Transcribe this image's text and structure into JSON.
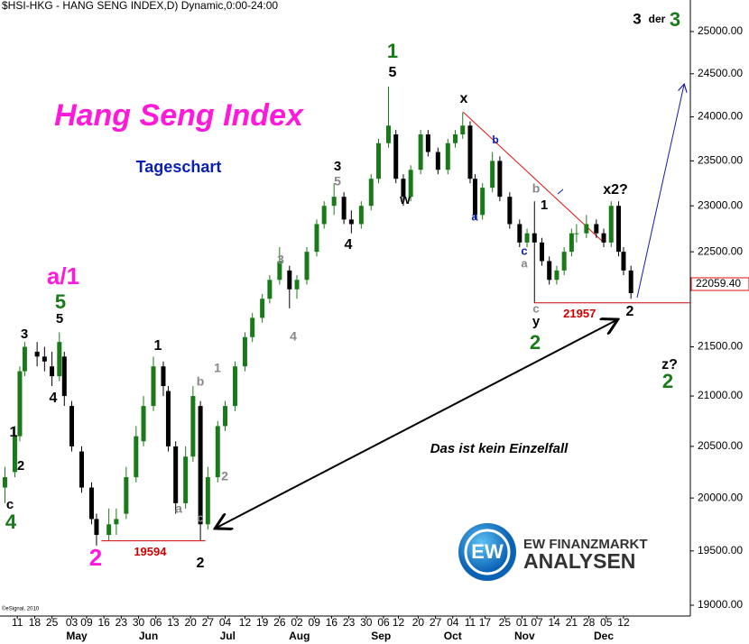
{
  "chart_data": {
    "type": "candlestick",
    "title": "$HSI-HKG - HANG SENG INDEX,D) Dynamic,0:00-24:00",
    "source": "©eSignal, 2010",
    "log_scale": true,
    "up_color": "#1a7a1a",
    "down_color": "#000000",
    "xlim": [
      -7,
      272
    ],
    "ylim": [
      18902,
      25380
    ],
    "yticks": [
      {
        "value": 19000,
        "label": "19000.00"
      },
      {
        "value": 19500,
        "label": "19500.00"
      },
      {
        "value": 20000,
        "label": "20000.00"
      },
      {
        "value": 20500,
        "label": "20500.00"
      },
      {
        "value": 21000,
        "label": "21000.00"
      },
      {
        "value": 21500,
        "label": "21500.00"
      },
      {
        "value": 22500,
        "label": "22500.00"
      },
      {
        "value": 23000,
        "label": "23000.00"
      },
      {
        "value": 23500,
        "label": "23500.00"
      },
      {
        "value": 24000,
        "label": "24000.00"
      },
      {
        "value": 24500,
        "label": "24500.00"
      },
      {
        "value": 25000,
        "label": "25000.00"
      }
    ],
    "xticks": [
      {
        "value": 0,
        "label": "11"
      },
      {
        "value": 7,
        "label": "18"
      },
      {
        "value": 14,
        "label": "25"
      },
      {
        "value": 22,
        "label": "03"
      },
      {
        "value": 28,
        "label": "09"
      },
      {
        "value": 35,
        "label": "16"
      },
      {
        "value": 42,
        "label": "23"
      },
      {
        "value": 49,
        "label": "30"
      },
      {
        "value": 56,
        "label": "06"
      },
      {
        "value": 63,
        "label": "13"
      },
      {
        "value": 70,
        "label": "20"
      },
      {
        "value": 77,
        "label": "27"
      },
      {
        "value": 84,
        "label": "04"
      },
      {
        "value": 92,
        "label": "12"
      },
      {
        "value": 99,
        "label": "19"
      },
      {
        "value": 106,
        "label": "26"
      },
      {
        "value": 113,
        "label": "02"
      },
      {
        "value": 120,
        "label": "09"
      },
      {
        "value": 127,
        "label": "16"
      },
      {
        "value": 134,
        "label": "23"
      },
      {
        "value": 141,
        "label": "30"
      },
      {
        "value": 148,
        "label": "06"
      },
      {
        "value": 154,
        "label": "12"
      },
      {
        "value": 162,
        "label": "20"
      },
      {
        "value": 169,
        "label": "27"
      },
      {
        "value": 176,
        "label": "04"
      },
      {
        "value": 183,
        "label": "11"
      },
      {
        "value": 189,
        "label": "17"
      },
      {
        "value": 197,
        "label": "25"
      },
      {
        "value": 204,
        "label": "01"
      },
      {
        "value": 210,
        "label": "07"
      },
      {
        "value": 217,
        "label": "14"
      },
      {
        "value": 224,
        "label": "21"
      },
      {
        "value": 231,
        "label": "28"
      },
      {
        "value": 238,
        "label": "05"
      },
      {
        "value": 245,
        "label": "12"
      }
    ],
    "xmonths": [
      {
        "value": 24,
        "label": "May"
      },
      {
        "value": 53,
        "label": "Jun"
      },
      {
        "value": 85,
        "label": "Jul"
      },
      {
        "value": 114,
        "label": "Aug"
      },
      {
        "value": 147,
        "label": "Sep"
      },
      {
        "value": 176,
        "label": "Oct"
      },
      {
        "value": 205,
        "label": "Nov"
      },
      {
        "value": 237,
        "label": "Dec"
      }
    ],
    "x": [
      -5,
      -1,
      1,
      3,
      8,
      11,
      14,
      17,
      19,
      22,
      26,
      30,
      32,
      37,
      40,
      44,
      48,
      51,
      55,
      59,
      61,
      64,
      68,
      71,
      74,
      77,
      81,
      84,
      88,
      92,
      95,
      99,
      102,
      106,
      110,
      113,
      117,
      121,
      124,
      128,
      132,
      135,
      139,
      143,
      146,
      150,
      153,
      156,
      159,
      163,
      166,
      170,
      174,
      177,
      180,
      183,
      185,
      188,
      192,
      195,
      199,
      203,
      206,
      209,
      212,
      215,
      218,
      221,
      224,
      226,
      230,
      234,
      237,
      240,
      243,
      245,
      248
    ],
    "open": [
      20100,
      20250,
      20600,
      21250,
      21450,
      21400,
      21300,
      21200,
      21400,
      20900,
      20450,
      20100,
      19800,
      19650,
      19750,
      19850,
      20200,
      20550,
      20900,
      21300,
      21050,
      20500,
      19950,
      20400,
      20900,
      19750,
      20200,
      20700,
      20900,
      21300,
      21600,
      21800,
      22000,
      22200,
      22300,
      22100,
      22200,
      22500,
      22800,
      23000,
      23100,
      22850,
      22800,
      23000,
      23300,
      23700,
      23800,
      23300,
      23100,
      23400,
      23800,
      23600,
      23400,
      23700,
      23800,
      23900,
      23300,
      22900,
      23200,
      23500,
      23100,
      22800,
      22600,
      22700,
      22600,
      22400,
      22200,
      22300,
      22500,
      22700,
      22700,
      22800,
      22700,
      22600,
      23000,
      22500,
      22300
    ],
    "high": [
      20300,
      20700,
      21300,
      21550,
      21550,
      21500,
      21450,
      21650,
      21450,
      20950,
      20500,
      20150,
      19850,
      19900,
      19900,
      20300,
      20700,
      21000,
      21400,
      21350,
      21100,
      20550,
      20500,
      21100,
      20950,
      20300,
      20750,
      20950,
      21350,
      21650,
      21850,
      22050,
      22250,
      22550,
      22350,
      22250,
      22550,
      22850,
      23050,
      23250,
      23150,
      22950,
      23050,
      23350,
      23750,
      24350,
      23850,
      23350,
      23450,
      23850,
      23850,
      23650,
      23750,
      23850,
      24050,
      23950,
      23350,
      23250,
      23600,
      23550,
      23150,
      22850,
      22750,
      23050,
      22650,
      22450,
      22350,
      22550,
      22750,
      22800,
      22900,
      22850,
      22750,
      23050,
      23050,
      22550,
      22350
    ],
    "low": [
      19950,
      20200,
      20550,
      21200,
      21300,
      21250,
      21100,
      21150,
      20900,
      20450,
      20050,
      19750,
      19550,
      19600,
      19650,
      19800,
      20150,
      20500,
      20850,
      21000,
      20450,
      19850,
      19900,
      20350,
      19600,
      19700,
      20150,
      20650,
      20850,
      21250,
      21550,
      21750,
      21950,
      22150,
      21900,
      22000,
      22150,
      22450,
      22750,
      22900,
      22800,
      22700,
      22750,
      22950,
      23250,
      23650,
      23250,
      23000,
      23050,
      23350,
      23550,
      23350,
      23350,
      23650,
      23750,
      23250,
      22850,
      22850,
      23150,
      23050,
      22750,
      22550,
      22550,
      21957,
      22350,
      22150,
      22150,
      22250,
      22450,
      22600,
      22650,
      22650,
      22550,
      22550,
      22450,
      22250,
      22000
    ],
    "close": [
      20200,
      20600,
      21250,
      21500,
      21400,
      21350,
      21200,
      21550,
      21000,
      20500,
      20100,
      19800,
      19650,
      19750,
      19800,
      20200,
      20600,
      20900,
      21300,
      21100,
      20500,
      19950,
      20400,
      21000,
      19750,
      20200,
      20700,
      20900,
      21300,
      21600,
      21800,
      22000,
      22200,
      22400,
      22100,
      22200,
      22500,
      22800,
      23000,
      23100,
      22850,
      22800,
      23000,
      23300,
      23700,
      23900,
      23300,
      23100,
      23400,
      23800,
      23600,
      23400,
      23700,
      23800,
      23900,
      23300,
      22900,
      23200,
      23500,
      23100,
      22800,
      22600,
      22700,
      22600,
      22400,
      22200,
      22300,
      22500,
      22700,
      22700,
      22800,
      22700,
      22600,
      23000,
      22500,
      22300,
      22059.4
    ],
    "last_price": {
      "value": 22059.4,
      "label": "22059.40"
    },
    "levels": [
      {
        "value": 21957,
        "color": "#d00000",
        "from": 209,
        "to": 272
      },
      {
        "value": 19594,
        "color": "#d00000",
        "from": 34,
        "to": 76
      }
    ],
    "annotations": [
      {
        "text": "3",
        "color": "#000000"
      },
      {
        "text": "der",
        "color": "#000000"
      },
      {
        "text": "3",
        "color": "#1a7a1a"
      },
      {
        "text": "1",
        "color": "#1a7a1a"
      },
      {
        "text": "5",
        "color": "#000000"
      },
      {
        "text": "Hang Seng Index",
        "color": "#ff1adb"
      },
      {
        "text": "Tageschart",
        "color": "#0a1fb5"
      },
      {
        "text": "x",
        "color": "#000000"
      },
      {
        "text": "b",
        "color": "#0a1fb5"
      },
      {
        "text": "3",
        "color": "#000000"
      },
      {
        "text": "5",
        "color": "#888888"
      },
      {
        "text": "w",
        "color": "#000000"
      },
      {
        "text": "b",
        "color": "#888888"
      },
      {
        "text": "1",
        "color": "#000000"
      },
      {
        "text": "x2?",
        "color": "#000000"
      },
      {
        "text": "a",
        "color": "#0a1fb5"
      },
      {
        "text": "4",
        "color": "#000000"
      },
      {
        "text": "c",
        "color": "#0a1fb5"
      },
      {
        "text": "a",
        "color": "#888888"
      },
      {
        "text": "3",
        "color": "#888888"
      },
      {
        "text": "a/1",
        "color": "#ff1adb"
      },
      {
        "text": "5",
        "color": "#1a7a1a"
      },
      {
        "text": "5",
        "color": "#000000"
      },
      {
        "text": "4",
        "color": "#888888"
      },
      {
        "text": "c",
        "color": "#888888"
      },
      {
        "text": "y",
        "color": "#000000"
      },
      {
        "text": "2",
        "color": "#000000"
      },
      {
        "text": "2",
        "color": "#1a7a1a"
      },
      {
        "text": "3",
        "color": "#000000"
      },
      {
        "text": "1",
        "color": "#000000"
      },
      {
        "text": "z?",
        "color": "#000000"
      },
      {
        "text": "2",
        "color": "#1a7a1a"
      },
      {
        "text": "1",
        "color": "#888888"
      },
      {
        "text": "b",
        "color": "#888888"
      },
      {
        "text": "4",
        "color": "#000000"
      },
      {
        "text": "1",
        "color": "#000000"
      },
      {
        "text": "2",
        "color": "#000000"
      },
      {
        "text": "Das ist kein Einzelfall",
        "color": "#000000"
      },
      {
        "text": "2",
        "color": "#888888"
      },
      {
        "text": "c",
        "color": "#000000"
      },
      {
        "text": "4",
        "color": "#1a7a1a"
      },
      {
        "text": "a",
        "color": "#888888"
      },
      {
        "text": "c",
        "color": "#888888"
      },
      {
        "text": "2",
        "color": "#ff1adb"
      },
      {
        "text": "2",
        "color": "#000000"
      }
    ],
    "logo": {
      "mark": "EW",
      "line1": "EW FINANZMARKT",
      "line2": "ANALYSEN"
    }
  }
}
